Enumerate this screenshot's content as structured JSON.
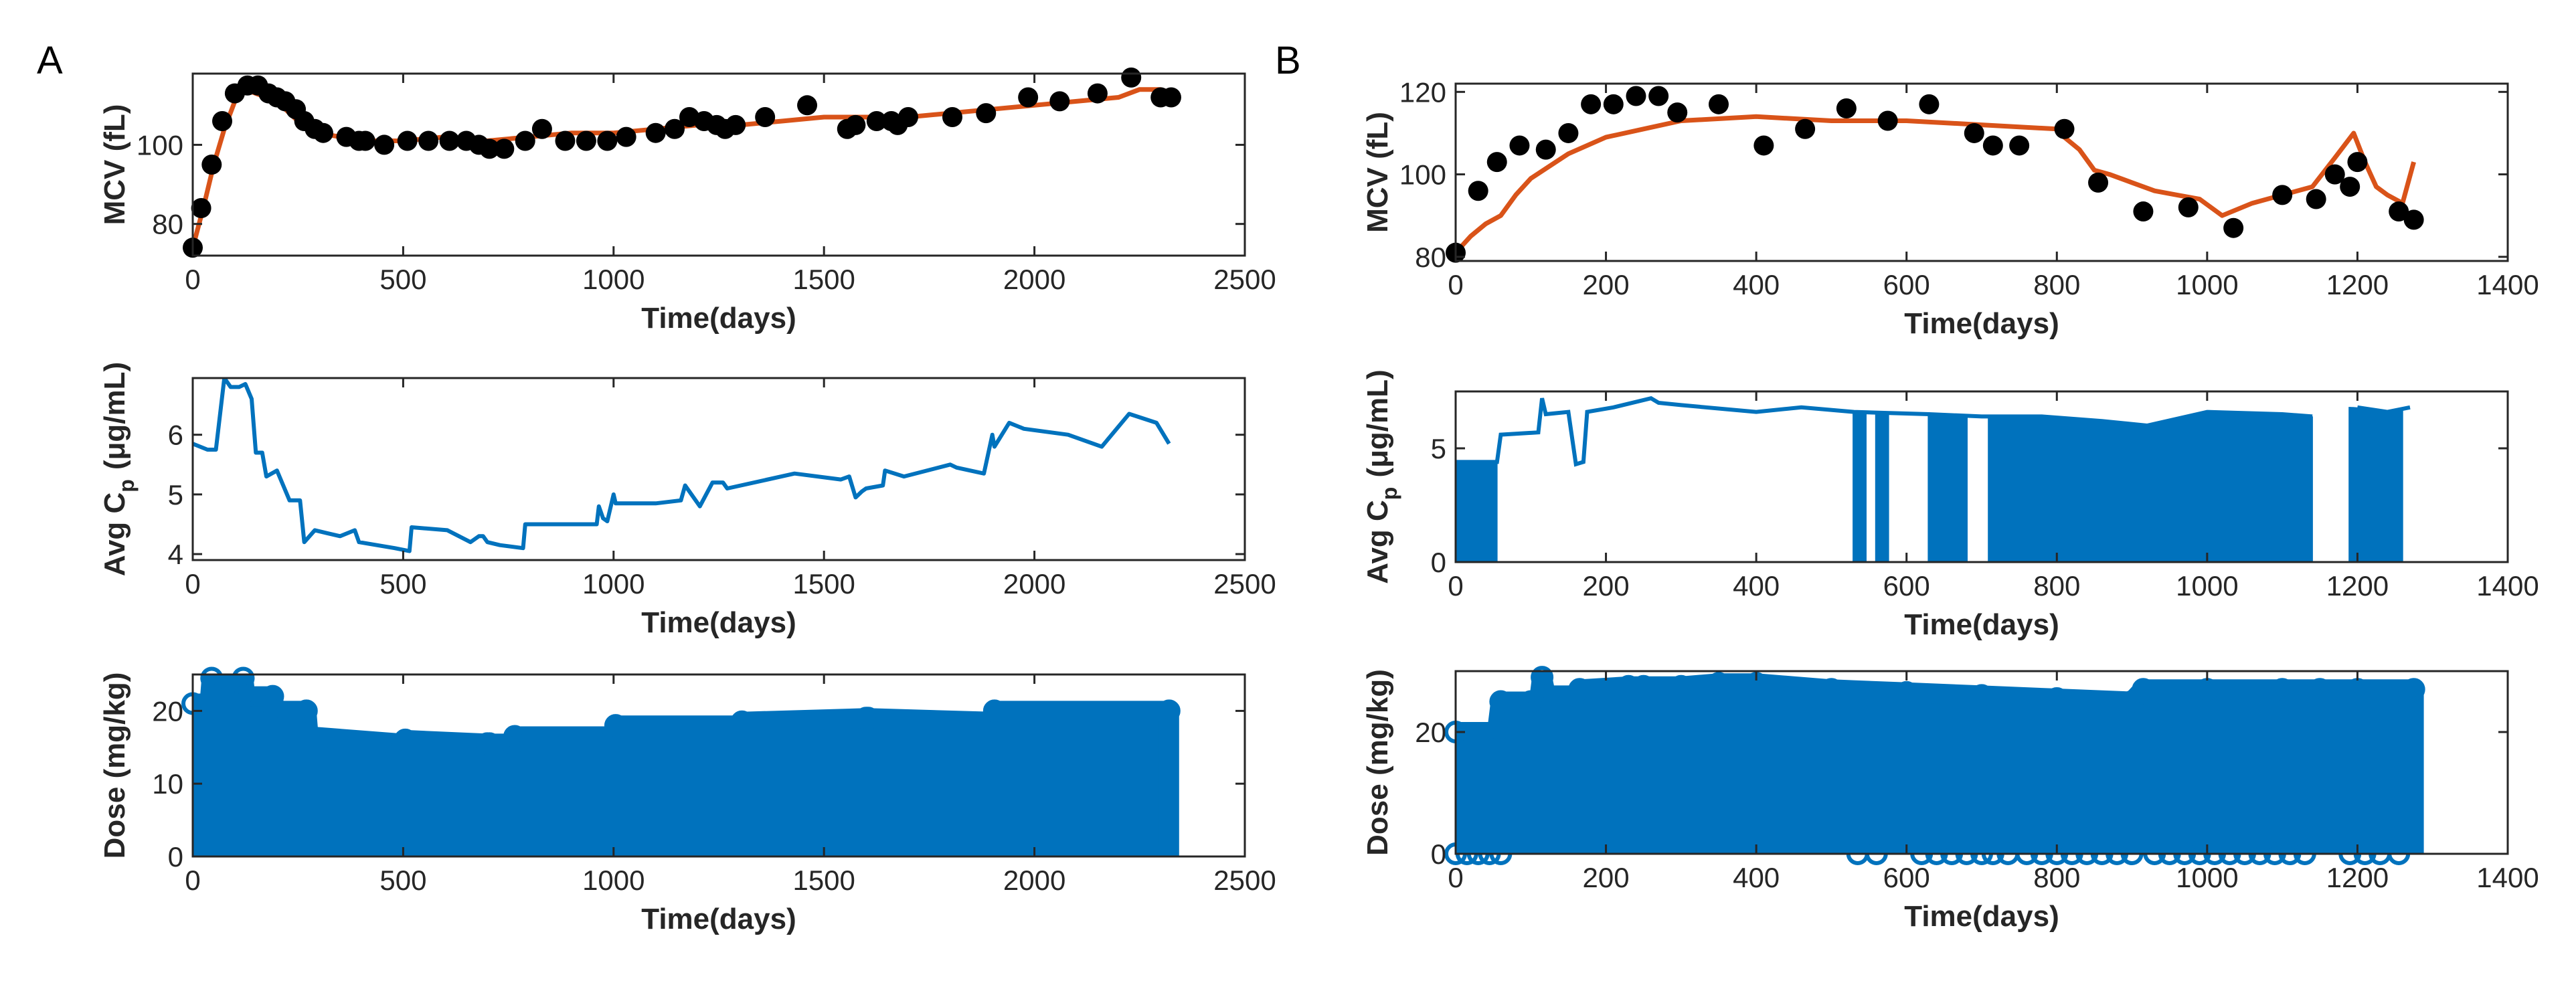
{
  "panels": [
    {
      "letter": "A"
    },
    {
      "letter": "B"
    }
  ],
  "colors": {
    "observed": "#000000",
    "model": "#d95319",
    "concentration": "#0072bd",
    "dose": "#0072bd",
    "axis": "#262626"
  },
  "chart_data": [
    {
      "id": "A-mcv",
      "panel": "A",
      "type": "scatter",
      "title": "",
      "xlabel": "Time(days)",
      "ylabel": "MCV (fL)",
      "xlim": [
        0,
        2500
      ],
      "ylim": [
        72,
        118
      ],
      "xticks": [
        0,
        500,
        1000,
        1500,
        2000,
        2500
      ],
      "yticks": [
        80,
        100
      ],
      "grid": false,
      "observed": {
        "x": [
          0,
          20,
          45,
          70,
          100,
          130,
          155,
          180,
          200,
          220,
          245,
          265,
          290,
          310,
          365,
          395,
          410,
          455,
          510,
          560,
          610,
          650,
          680,
          705,
          740,
          790,
          830,
          885,
          935,
          985,
          1030,
          1100,
          1145,
          1180,
          1215,
          1245,
          1265,
          1290,
          1360,
          1460,
          1555,
          1575,
          1625,
          1660,
          1675,
          1700,
          1805,
          1885,
          1985,
          2060,
          2150,
          2230,
          2300,
          2325
        ],
        "y": [
          74,
          84,
          95,
          106,
          113,
          115,
          115,
          113,
          112,
          111,
          109,
          106,
          104,
          103,
          102,
          101,
          101,
          100,
          101,
          101,
          101,
          101,
          100,
          99,
          99,
          101,
          104,
          101,
          101,
          101,
          102,
          103,
          104,
          107,
          106,
          105,
          104,
          105,
          107,
          110,
          104,
          105,
          106,
          106,
          105,
          107,
          107,
          108,
          112,
          111,
          113,
          117,
          112,
          112
        ]
      },
      "model": {
        "x": [
          0,
          25,
          50,
          75,
          100,
          125,
          150,
          200,
          250,
          300,
          400,
          500,
          600,
          700,
          800,
          900,
          1000,
          1100,
          1200,
          1300,
          1400,
          1500,
          1600,
          1700,
          1800,
          1900,
          2000,
          2100,
          2200,
          2250,
          2300,
          2330
        ],
        "y": [
          74,
          84,
          95,
          104,
          111,
          114,
          113,
          111,
          106,
          103,
          101,
          101,
          102,
          101,
          102,
          103,
          103,
          104,
          105,
          105,
          106,
          107,
          107,
          107,
          108,
          109,
          110,
          111,
          112,
          114,
          114,
          113
        ]
      }
    },
    {
      "id": "A-conc",
      "panel": "A",
      "type": "line",
      "title": "",
      "xlabel": "Time(days)",
      "ylabel": "Avg C",
      "ylabel_subscript": "p",
      "ylabel_unit": "(μg/mL)",
      "xlim": [
        0,
        2500
      ],
      "ylim": [
        3.9,
        6.95
      ],
      "xticks": [
        0,
        500,
        1000,
        1500,
        2000,
        2500
      ],
      "yticks": [
        4,
        5,
        6
      ],
      "grid": false,
      "series": [
        {
          "x": [
            0,
            35,
            55,
            75,
            90,
            110,
            125,
            140,
            150,
            165,
            175,
            200,
            215,
            230,
            255,
            265,
            290,
            320,
            350,
            385,
            395,
            480,
            515,
            520,
            605,
            660,
            680,
            690,
            700,
            730,
            785,
            790,
            960,
            965,
            975,
            985,
            1000,
            1005,
            1100,
            1160,
            1170,
            1205,
            1235,
            1260,
            1270,
            1430,
            1540,
            1560,
            1575,
            1590,
            1600,
            1640,
            1645,
            1690,
            1800,
            1815,
            1880,
            1900,
            1905,
            1940,
            1975,
            2080,
            2160,
            2225,
            2290,
            2320
          ],
          "y": [
            5.85,
            5.75,
            5.75,
            6.95,
            6.8,
            6.8,
            6.85,
            6.6,
            5.7,
            5.7,
            5.3,
            5.4,
            5.15,
            4.9,
            4.9,
            4.2,
            4.4,
            4.35,
            4.3,
            4.4,
            4.2,
            4.1,
            4.05,
            4.45,
            4.4,
            4.2,
            4.3,
            4.3,
            4.2,
            4.15,
            4.1,
            4.5,
            4.5,
            4.8,
            4.6,
            4.55,
            5.0,
            4.85,
            4.85,
            4.9,
            5.15,
            4.8,
            5.2,
            5.2,
            5.1,
            5.35,
            5.25,
            5.3,
            4.95,
            5.05,
            5.1,
            5.15,
            5.4,
            5.3,
            5.5,
            5.45,
            5.35,
            6.0,
            5.8,
            6.2,
            6.1,
            6.0,
            5.8,
            6.35,
            6.2,
            5.85
          ]
        }
      ]
    },
    {
      "id": "A-dose",
      "panel": "A",
      "type": "area",
      "title": "",
      "xlabel": "Time(days)",
      "ylabel": "Dose (mg/kg)",
      "xlim": [
        0,
        2500
      ],
      "ylim": [
        0,
        25
      ],
      "xticks": [
        0,
        500,
        1000,
        1500,
        2000,
        2500
      ],
      "yticks": [
        0,
        10,
        20
      ],
      "grid": false,
      "series": [
        {
          "x": [
            0,
            40,
            45,
            120,
            125,
            190,
            195,
            270,
            275,
            500,
            505,
            700,
            705,
            760,
            765,
            1000,
            1005,
            1300,
            1305,
            1600,
            1605,
            1900,
            1905,
            2320
          ],
          "y": [
            21,
            21,
            24.5,
            24.5,
            22,
            22,
            20,
            20,
            16.5,
            15.5,
            16,
            15.5,
            15.5,
            15.5,
            16.5,
            16.5,
            18,
            18,
            18.5,
            19,
            19,
            18.5,
            20,
            20
          ]
        }
      ]
    },
    {
      "id": "B-mcv",
      "panel": "B",
      "type": "scatter",
      "title": "",
      "xlabel": "Time(days)",
      "ylabel": "MCV (fL)",
      "xlim": [
        0,
        1400
      ],
      "ylim": [
        79,
        122
      ],
      "xticks": [
        0,
        200,
        400,
        600,
        800,
        1000,
        1200,
        1400
      ],
      "yticks": [
        80,
        100,
        120
      ],
      "grid": false,
      "observed": {
        "x": [
          0,
          30,
          55,
          85,
          120,
          150,
          180,
          210,
          240,
          270,
          295,
          350,
          410,
          465,
          520,
          575,
          630,
          690,
          715,
          750,
          810,
          855,
          915,
          975,
          1035,
          1100,
          1145,
          1170,
          1190,
          1200,
          1255,
          1275
        ],
        "y": [
          81,
          96,
          103,
          107,
          106,
          110,
          117,
          117,
          119,
          119,
          115,
          117,
          107,
          111,
          116,
          113,
          117,
          110,
          107,
          107,
          111,
          98,
          91,
          92,
          87,
          95,
          94,
          100,
          97,
          103,
          91,
          89
        ]
      },
      "model": {
        "x": [
          0,
          20,
          40,
          60,
          80,
          100,
          150,
          200,
          250,
          300,
          400,
          500,
          600,
          700,
          800,
          810,
          830,
          850,
          870,
          900,
          930,
          960,
          990,
          1020,
          1060,
          1100,
          1140,
          1170,
          1195,
          1210,
          1225,
          1240,
          1260,
          1275
        ],
        "y": [
          81,
          85,
          88,
          90,
          95,
          99,
          105,
          109,
          111,
          113,
          114,
          113,
          113,
          112,
          111,
          109,
          106,
          101,
          100,
          98,
          96,
          95,
          94,
          90,
          93,
          95,
          97,
          104,
          110,
          103,
          97,
          95,
          93,
          103
        ]
      }
    },
    {
      "id": "B-conc",
      "panel": "B",
      "type": "line",
      "title": "",
      "xlabel": "Time(days)",
      "ylabel": "Avg C",
      "ylabel_subscript": "p",
      "ylabel_unit": "(μg/mL)",
      "xlim": [
        0,
        1400
      ],
      "ylim": [
        0,
        7.5
      ],
      "xticks": [
        0,
        200,
        400,
        600,
        800,
        1000,
        1200,
        1400
      ],
      "yticks": [
        0,
        5
      ],
      "grid": false,
      "envelope": {
        "x": [
          0,
          55,
          60,
          110,
          115,
          120,
          150,
          160,
          170,
          175,
          210,
          260,
          270,
          300,
          400,
          460,
          530,
          630,
          700,
          780,
          860,
          920,
          1000,
          1100,
          1140,
          1150,
          1200,
          1240,
          1270
        ],
        "y": [
          4.4,
          4.4,
          5.6,
          5.7,
          7.2,
          6.5,
          6.6,
          4.3,
          4.4,
          6.6,
          6.8,
          7.2,
          7.0,
          6.9,
          6.6,
          6.8,
          6.6,
          6.5,
          6.4,
          6.4,
          6.2,
          6.0,
          6.6,
          6.5,
          6.4,
          6.9,
          6.8,
          6.6,
          6.8
        ]
      },
      "oscillating_intervals": [
        [
          0,
          55
        ],
        [
          530,
          545
        ],
        [
          560,
          575
        ],
        [
          630,
          680
        ],
        [
          710,
          1140
        ],
        [
          1190,
          1260
        ]
      ],
      "gap_intervals": [
        [
          1140,
          1190
        ]
      ]
    },
    {
      "id": "B-dose",
      "panel": "B",
      "type": "area",
      "title": "",
      "xlabel": "Time(days)",
      "ylabel": "Dose (mg/kg)",
      "xlim": [
        0,
        1400
      ],
      "ylim": [
        0,
        30
      ],
      "xticks": [
        0,
        200,
        400,
        600,
        800,
        1000,
        1200,
        1400
      ],
      "yticks": [
        0,
        20
      ],
      "grid": false,
      "series": [
        {
          "x": [
            0,
            55,
            60,
            100,
            110,
            115,
            120,
            160,
            165,
            230,
            250,
            300,
            350,
            400,
            500,
            600,
            700,
            800,
            900,
            915,
            1000,
            1100,
            1150,
            1200,
            1275
          ],
          "y": [
            20,
            20,
            25,
            25,
            24,
            29,
            26,
            26,
            27,
            27.5,
            27.5,
            27.5,
            28,
            28,
            27,
            26.5,
            26,
            25.5,
            25,
            27,
            27,
            27,
            27,
            27,
            27
          ]
        }
      ],
      "zero_markers_x": [
        0,
        15,
        30,
        45,
        60,
        535,
        560,
        620,
        640,
        660,
        680,
        700,
        715,
        735,
        760,
        780,
        800,
        820,
        840,
        860,
        880,
        900,
        930,
        950,
        970,
        990,
        1010,
        1030,
        1050,
        1070,
        1090,
        1110,
        1130,
        1190,
        1210,
        1230,
        1255
      ]
    }
  ]
}
